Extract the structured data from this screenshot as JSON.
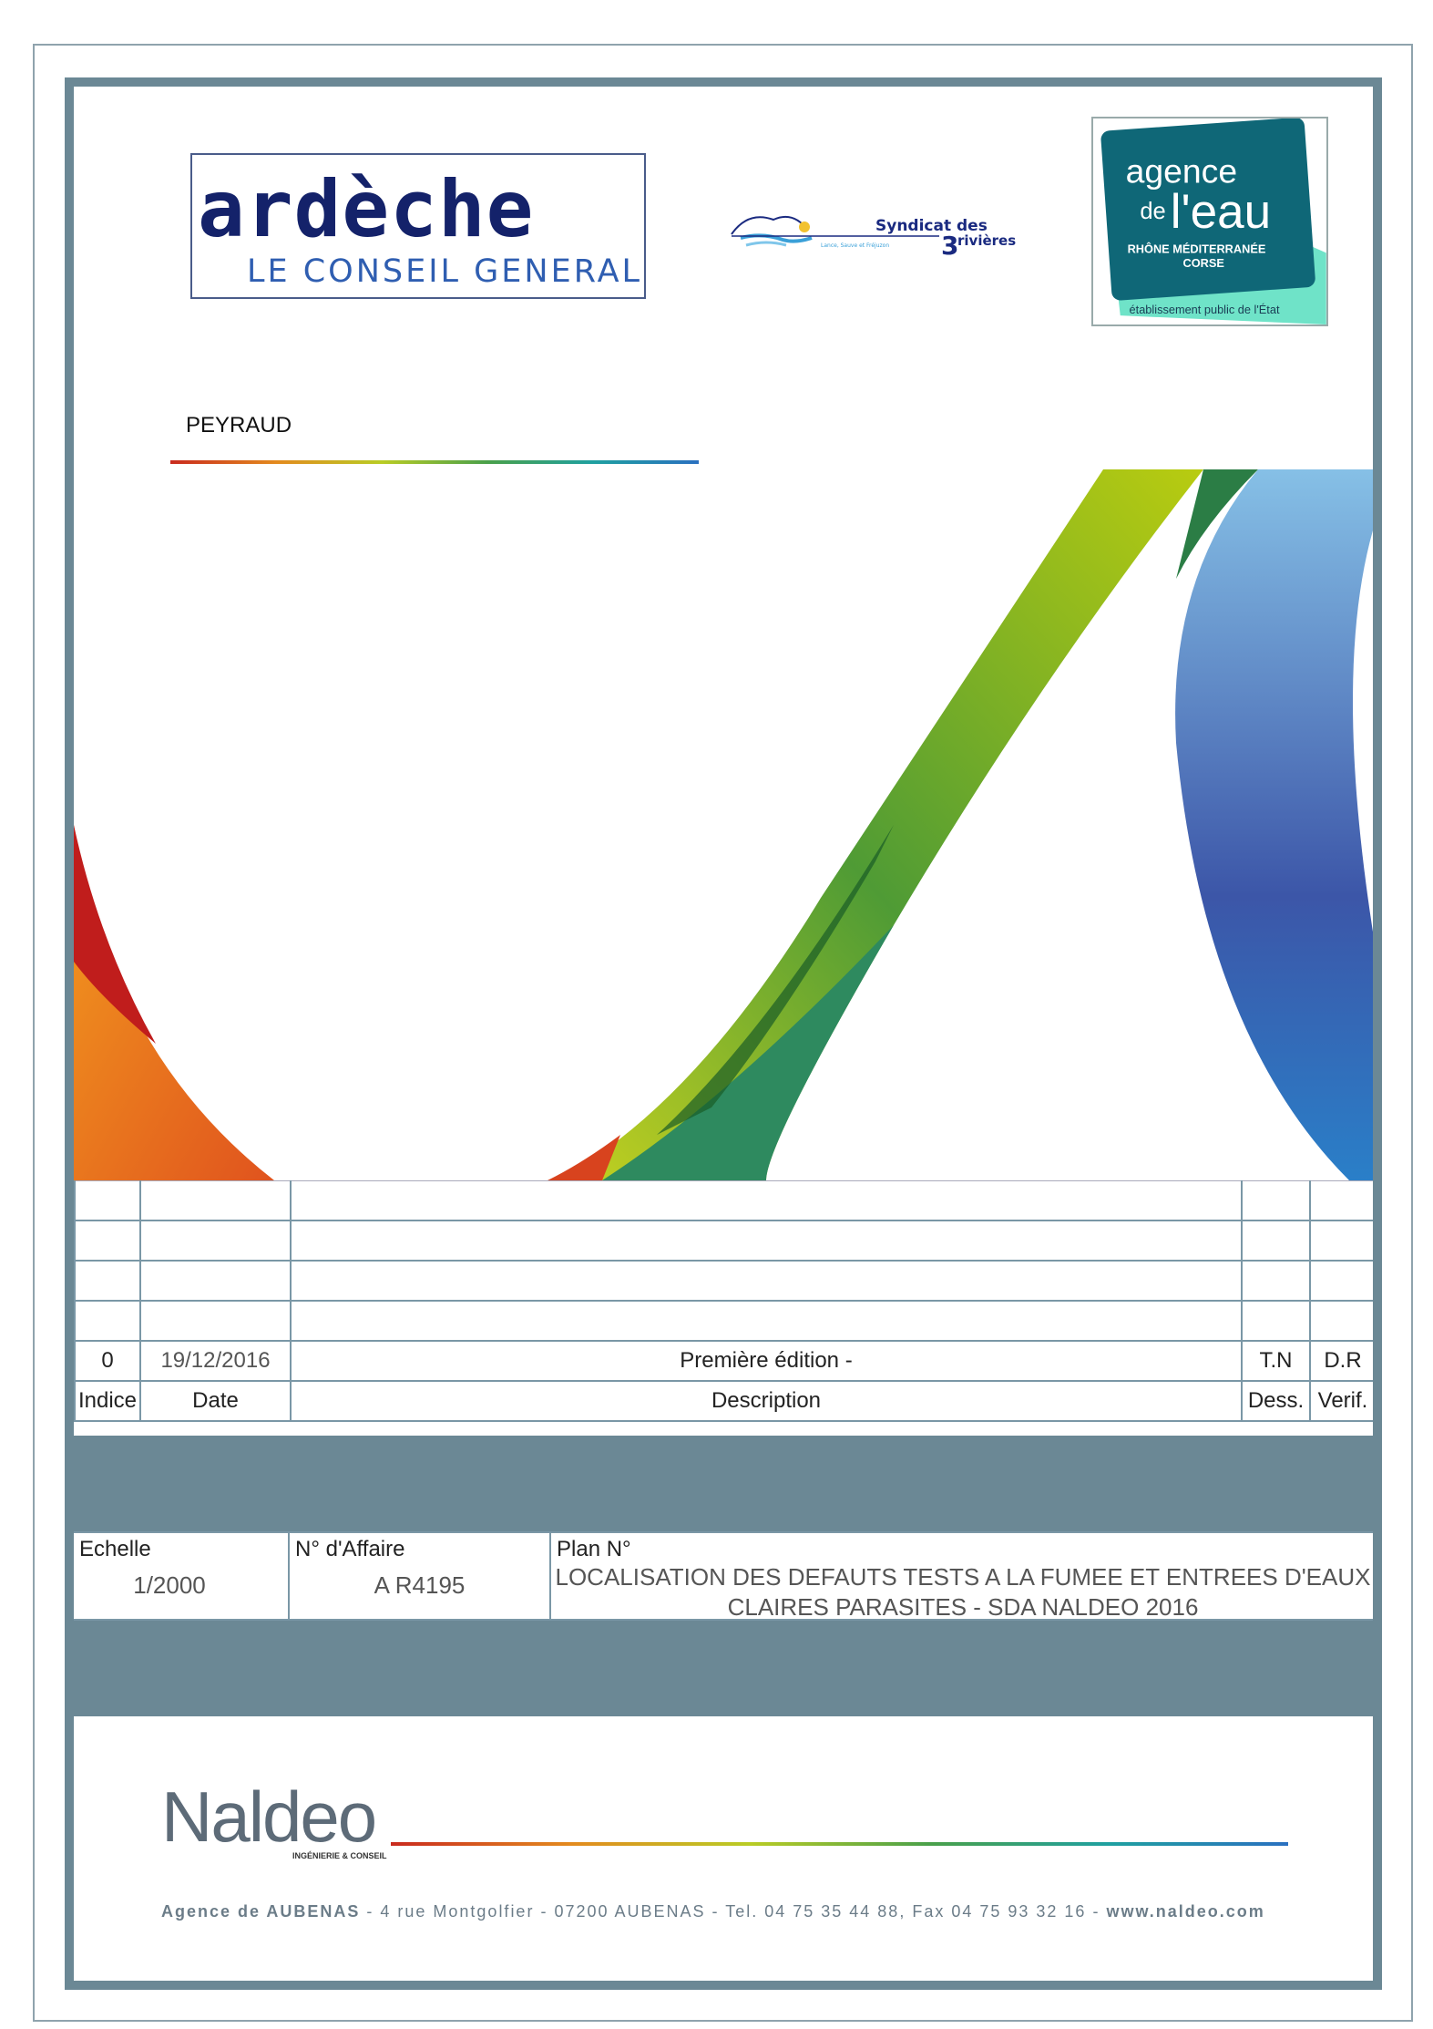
{
  "header": {
    "logo_ardeche": {
      "word": "ardèche",
      "subtitle": "LE CONSEIL GENERAL"
    },
    "logo_syndicat": {
      "title": "Syndicat des",
      "number": "3",
      "rivieres": "rivières",
      "tagline": "Lance, Sauve et Fréjuzon"
    },
    "logo_agence": {
      "line1": "agence",
      "de": "de",
      "leau": "l'eau",
      "region1": "RHÔNE MÉDITERRANÉE",
      "region2": "CORSE",
      "footer": "établissement public de l'État"
    }
  },
  "project": {
    "name": "PEYRAUD"
  },
  "revisions": {
    "rows": [
      {
        "indice": "",
        "date": "",
        "description": "",
        "dess": "",
        "verif": ""
      },
      {
        "indice": "",
        "date": "",
        "description": "",
        "dess": "",
        "verif": ""
      },
      {
        "indice": "",
        "date": "",
        "description": "",
        "dess": "",
        "verif": ""
      },
      {
        "indice": "",
        "date": "",
        "description": "",
        "dess": "",
        "verif": ""
      },
      {
        "indice": "0",
        "date": "19/12/2016",
        "description": "Première édition -",
        "dess": "T.N",
        "verif": "D.R"
      }
    ],
    "header": {
      "indice": "Indice",
      "date": "Date",
      "description": "Description",
      "dess": "Dess.",
      "verif": "Verif."
    }
  },
  "info": {
    "echelle_label": "Echelle",
    "echelle_value": "1/2000",
    "affaire_label": "N° d'Affaire",
    "affaire_value": "A R4195",
    "plan_label": "Plan N°",
    "plan_line1": "LOCALISATION DES DEFAUTS TESTS A LA FUMEE ET ENTREES D'EAUX",
    "plan_line2": "CLAIRES PARASITES - SDA NALDEO 2016"
  },
  "footer": {
    "brand": "Naldeo",
    "brand_sub": "INGÉNIERIE & CONSEIL",
    "address_bold": "Agence de AUBENAS",
    "address_rest": " - 4 rue Montgolfier - 07200 AUBENAS  - Tel. 04 75 35 44 88, Fax 04 75 93 32 16 - ",
    "website": "www.naldeo.com"
  },
  "colors": {
    "frame": "#6b8895",
    "ardeche_navy": "#14226a",
    "agence_teal": "#0f6777"
  }
}
